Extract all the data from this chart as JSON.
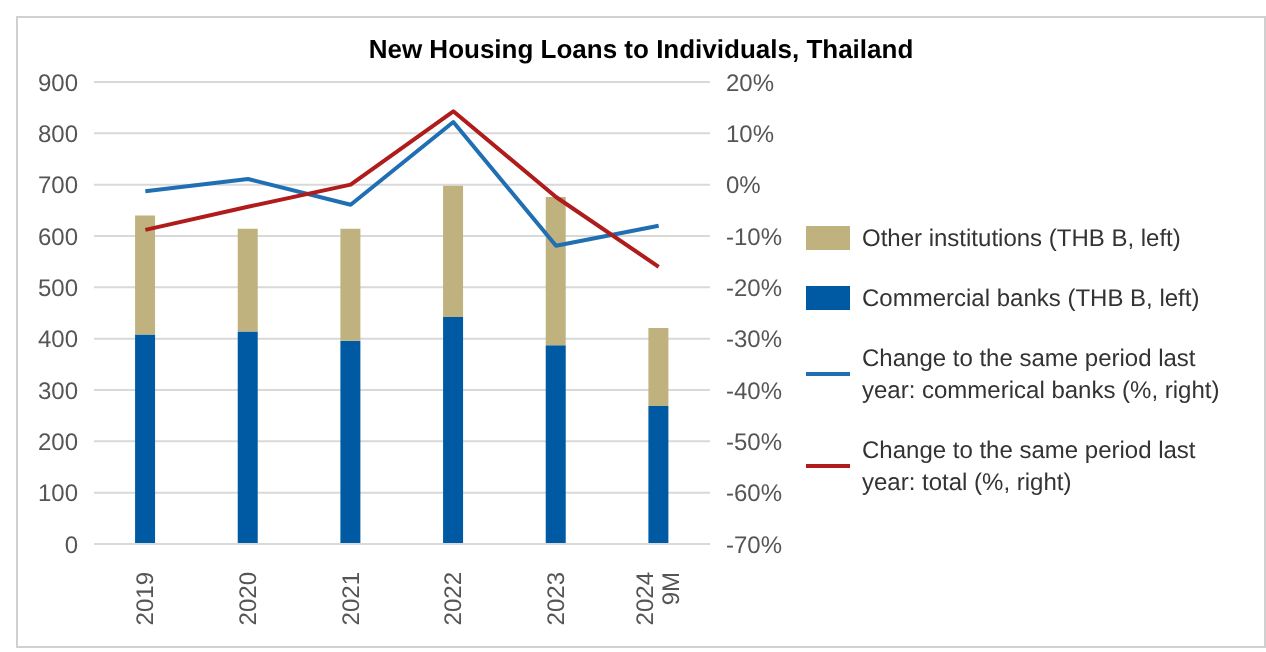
{
  "chart_data": {
    "type": "bar",
    "title": "New Housing Loans to Individuals, Thailand",
    "categories": [
      "2019",
      "2020",
      "2021",
      "2022",
      "2023",
      "2024 9M"
    ],
    "stacked": true,
    "series": [
      {
        "name": "Commercial banks (THB B, left)",
        "color": "#005aa3",
        "values": [
          408,
          414,
          396,
          442,
          387,
          269
        ]
      },
      {
        "name": "Other institutions (THB B, left)",
        "color": "#c0b27e",
        "values": [
          232,
          200,
          218,
          256,
          289,
          152
        ]
      },
      {
        "name": "Change to the same period last year: commerical banks (%, right)",
        "type": "line",
        "axis": "y2",
        "color": "#1f6fb2",
        "values": [
          -1.3,
          1.1,
          -3.9,
          12.2,
          -11.9,
          -8
        ]
      },
      {
        "name": "Change to the same period last year: total (%, right)",
        "type": "line",
        "axis": "y2",
        "color": "#b01c1c",
        "values": [
          -8.8,
          -4.3,
          0,
          14.3,
          -2.4,
          -16
        ]
      }
    ],
    "ylim": [
      0,
      900
    ],
    "yticks": [
      0,
      100,
      200,
      300,
      400,
      500,
      600,
      700,
      800,
      900
    ],
    "y2lim": [
      -70,
      20
    ],
    "y2ticks": [
      {
        "value": -70,
        "label": "-70%"
      },
      {
        "value": -60,
        "label": "-60%"
      },
      {
        "value": -50,
        "label": "-50%"
      },
      {
        "value": -40,
        "label": "-40%"
      },
      {
        "value": -30,
        "label": "-30%"
      },
      {
        "value": -20,
        "label": "-20%"
      },
      {
        "value": -10,
        "label": "-10%"
      },
      {
        "value": 0,
        "label": "0%"
      },
      {
        "value": 10,
        "label": "10%"
      },
      {
        "value": 20,
        "label": "20%"
      }
    ],
    "grid": "y",
    "legend": "right",
    "marker": "none",
    "line_style": "solid"
  }
}
